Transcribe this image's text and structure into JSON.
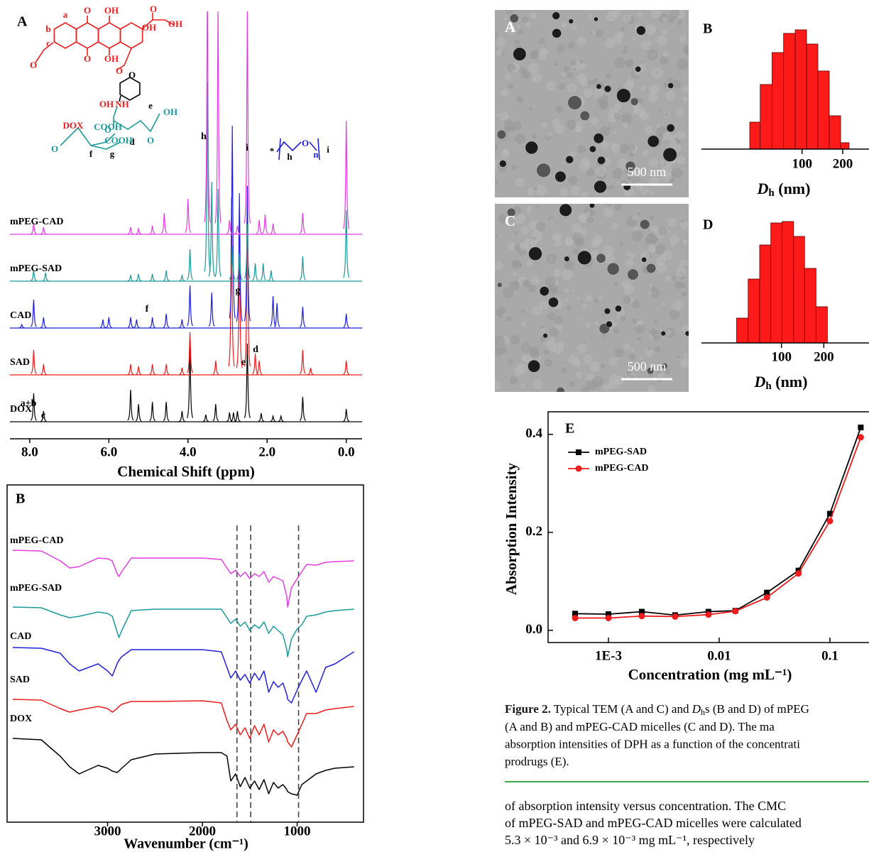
{
  "chart_data": [
    {
      "type": "nmr",
      "panel": "A",
      "xlabel": "Chemical Shift (ppm)",
      "xlim": [
        8.5,
        -0.4
      ],
      "xticks": [
        {
          "value": 8,
          "label": "8.0"
        },
        {
          "value": 6,
          "label": "6.0"
        },
        {
          "value": 4,
          "label": "4.0"
        },
        {
          "value": 2,
          "label": "2.0"
        },
        {
          "value": 0,
          "label": "0.0"
        }
      ],
      "series": [
        {
          "name": "DOX",
          "color": "#000000",
          "x": [
            7.9,
            7.65,
            5.45,
            5.25,
            4.9,
            4.55,
            4.15,
            3.95,
            3.55,
            3.3,
            2.95,
            2.85,
            2.75,
            2.5,
            2.15,
            1.85,
            1.65,
            1.1,
            0.0
          ],
          "values": [
            40,
            15,
            45,
            25,
            28,
            28,
            15,
            110,
            10,
            25,
            13,
            13,
            15,
            110,
            12,
            8,
            8,
            35,
            18
          ]
        },
        {
          "name": "SAD",
          "color": "#ee1c1c",
          "x": [
            7.9,
            7.65,
            5.45,
            5.25,
            4.9,
            4.55,
            4.15,
            3.95,
            3.3,
            2.9,
            2.7,
            2.5,
            2.3,
            2.2,
            1.1,
            0.9,
            0.0
          ],
          "values": [
            35,
            15,
            15,
            12,
            15,
            15,
            10,
            60,
            20,
            250,
            200,
            250,
            30,
            20,
            35,
            10,
            20
          ]
        },
        {
          "name": "CAD",
          "color": "#1f1fdd",
          "x": [
            8.2,
            7.9,
            7.65,
            6.15,
            6.0,
            5.45,
            5.3,
            4.9,
            4.55,
            4.15,
            3.95,
            3.4,
            2.88,
            2.7,
            2.5,
            1.85,
            1.75,
            1.1,
            0.0
          ],
          "values": [
            5,
            40,
            15,
            12,
            15,
            15,
            12,
            15,
            20,
            12,
            60,
            50,
            285,
            190,
            200,
            45,
            35,
            30,
            20
          ]
        },
        {
          "name": "mPEG-SAD",
          "color": "#1a9a9a",
          "x": [
            7.9,
            7.6,
            5.45,
            5.25,
            4.9,
            4.55,
            4.15,
            3.95,
            3.51,
            3.4,
            3.24,
            2.88,
            2.7,
            2.5,
            2.3,
            2.1,
            1.9,
            1.1,
            0.0
          ],
          "values": [
            15,
            12,
            8,
            10,
            10,
            15,
            8,
            45,
            280,
            140,
            130,
            50,
            40,
            80,
            25,
            25,
            15,
            35,
            100
          ]
        },
        {
          "name": "mPEG-CAD",
          "color": "#e23de2",
          "x": [
            7.9,
            7.65,
            5.45,
            5.25,
            4.9,
            4.6,
            4.0,
            3.51,
            3.24,
            2.95,
            2.75,
            2.5,
            2.2,
            2.05,
            1.85,
            1.1,
            0.0
          ],
          "values": [
            15,
            10,
            10,
            8,
            12,
            30,
            50,
            350,
            320,
            20,
            12,
            320,
            20,
            28,
            15,
            30,
            160
          ]
        }
      ],
      "peak_labels": [
        "h",
        "i",
        "g",
        "f",
        "e",
        "d",
        "a+b",
        "c"
      ],
      "structure_labels": [
        "a",
        "b",
        "c",
        "O",
        "OH",
        "O",
        "OH",
        "OH",
        "O",
        "OH",
        "O",
        "O",
        "O",
        "OH",
        "NH",
        "O",
        "e",
        "OH",
        "d",
        "O",
        "DOX",
        "COOH",
        "COOH",
        "O",
        "f",
        "g",
        "*",
        "O",
        "h",
        "n",
        "i"
      ]
    },
    {
      "type": "ir",
      "panel": "B",
      "xlabel": "Wavenumber (cm⁻¹)",
      "xlim": [
        4060,
        300
      ],
      "xticks": [
        3000,
        2000,
        1000
      ],
      "ylim": [
        0,
        475
      ],
      "reference_lines": [
        1635,
        1490,
        985
      ],
      "x": [
        4000,
        3700,
        3500,
        3400,
        3300,
        3100,
        3000,
        2950,
        2900,
        2880,
        2850,
        2750,
        2500,
        2000,
        1800,
        1740,
        1700,
        1650,
        1600,
        1550,
        1500,
        1450,
        1400,
        1350,
        1300,
        1250,
        1200,
        1150,
        1110,
        1100,
        1060,
        1000,
        950,
        900,
        800,
        700,
        600,
        400
      ],
      "series": [
        {
          "name": "mPEG-CAD",
          "color": "#e23de2",
          "values": [
            383,
            382,
            368,
            358,
            360,
            372,
            371,
            368,
            350,
            346,
            353,
            372,
            372,
            372,
            370,
            358,
            350,
            355,
            346,
            352,
            343,
            350,
            346,
            353,
            338,
            346,
            343,
            340,
            318,
            303,
            330,
            343,
            353,
            363,
            362,
            366,
            367,
            368
          ]
        },
        {
          "name": "mPEG-SAD",
          "color": "#1a9a9a",
          "values": [
            303,
            302,
            292,
            288,
            290,
            296,
            294,
            290,
            268,
            260,
            270,
            298,
            300,
            300,
            300,
            288,
            280,
            286,
            276,
            282,
            270,
            278,
            273,
            282,
            266,
            276,
            270,
            264,
            243,
            233,
            258,
            272,
            278,
            290,
            292,
            296,
            298,
            300
          ]
        },
        {
          "name": "CAD",
          "color": "#1f1fdd",
          "values": [
            246,
            245,
            238,
            223,
            213,
            223,
            213,
            206,
            223,
            228,
            233,
            243,
            243,
            243,
            240,
            218,
            203,
            213,
            200,
            208,
            196,
            210,
            200,
            213,
            183,
            198,
            190,
            196,
            180,
            173,
            168,
            186,
            200,
            213,
            183,
            218,
            223,
            240
          ]
        },
        {
          "name": "SAD",
          "color": "#ee1c1c",
          "values": [
            173,
            172,
            160,
            155,
            158,
            163,
            160,
            155,
            160,
            163,
            166,
            170,
            170,
            171,
            168,
            143,
            130,
            138,
            123,
            133,
            118,
            136,
            123,
            138,
            113,
            130,
            123,
            128,
            118,
            113,
            106,
            123,
            138,
            153,
            153,
            158,
            160,
            163
          ]
        },
        {
          "name": "DOX",
          "color": "#000000",
          "values": [
            118,
            116,
            93,
            78,
            68,
            80,
            76,
            72,
            70,
            72,
            76,
            88,
            96,
            98,
            98,
            93,
            58,
            68,
            50,
            63,
            48,
            58,
            46,
            60,
            40,
            56,
            48,
            53,
            46,
            43,
            40,
            38,
            53,
            58,
            68,
            73,
            76,
            78
          ]
        }
      ]
    },
    {
      "type": "histogram",
      "panel": "B",
      "xlabel": [
        "D",
        "h",
        " (nm)"
      ],
      "log_x": true,
      "xlim": [
        18,
        313
      ],
      "xticks": [
        100,
        200
      ],
      "ylim": [
        0,
        175
      ],
      "color": "#ff1a1a",
      "bins": [
        41,
        49,
        60,
        73,
        89,
        108,
        131,
        159,
        193,
        223
      ],
      "values": [
        38,
        91,
        136,
        163,
        168,
        148,
        110,
        47,
        9
      ]
    },
    {
      "type": "histogram",
      "panel": "D",
      "xlabel": [
        "D",
        "h",
        " (nm)"
      ],
      "log_x": true,
      "xlim": [
        27,
        419
      ],
      "xticks": [
        100,
        200
      ],
      "ylim": [
        0,
        175
      ],
      "color": "#ff1a1a",
      "bins": [
        48,
        58,
        70,
        84,
        101,
        122,
        146,
        176,
        212
      ],
      "values": [
        35,
        90,
        138,
        169,
        171,
        150,
        105,
        51
      ]
    },
    {
      "type": "line",
      "panel": "E",
      "xlabel": "Concentration (mg mL⁻¹)",
      "ylabel": "Absorption Intensity",
      "log_x": true,
      "xlim": [
        0.000285,
        0.25
      ],
      "xticks": [
        {
          "value": 0.001,
          "label": "1E-3"
        },
        0.01,
        0.1
      ],
      "ylim": [
        -0.025,
        0.446
      ],
      "yticks": [
        {
          "value": 0,
          "label": "0.0"
        },
        0.2,
        0.4
      ],
      "legend": "top-left",
      "x": [
        0.0005,
        0.001,
        0.002,
        0.004,
        0.008,
        0.014,
        0.027,
        0.052,
        0.1,
        0.19
      ],
      "series": [
        {
          "name": "mPEG-SAD",
          "color": "#000000",
          "marker": "square",
          "values": [
            0.034,
            0.033,
            0.038,
            0.031,
            0.038,
            0.04,
            0.077,
            0.122,
            0.238,
            0.414
          ]
        },
        {
          "name": "mPEG-CAD",
          "color": "#ee1c1c",
          "marker": "circle",
          "values": [
            0.025,
            0.025,
            0.029,
            0.028,
            0.032,
            0.039,
            0.067,
            0.116,
            0.223,
            0.394
          ]
        }
      ]
    }
  ],
  "tem_images": [
    {
      "panel": "A",
      "scale_bar": "500 nm"
    },
    {
      "panel": "C",
      "scale_bar": "500 nm"
    }
  ],
  "caption": {
    "label": "Figure 2.",
    "line1": [
      " Typical TEM (A and C) and ",
      "D",
      "h",
      "s (B and D) of mPEG"
    ],
    "lines": [
      "(A and B) and mPEG-CAD micelles (C and D). The ma",
      "absorption intensities of DPH as a function of the concentrati",
      "prodrugs (E)."
    ]
  },
  "body_text": [
    "of absorption intensity versus concentration. The CMC",
    "of mPEG-SAD and mPEG-CAD micelles were calculated",
    "5.3 × 10⁻³ and 6.9 × 10⁻³ mg mL⁻¹, respectively"
  ]
}
